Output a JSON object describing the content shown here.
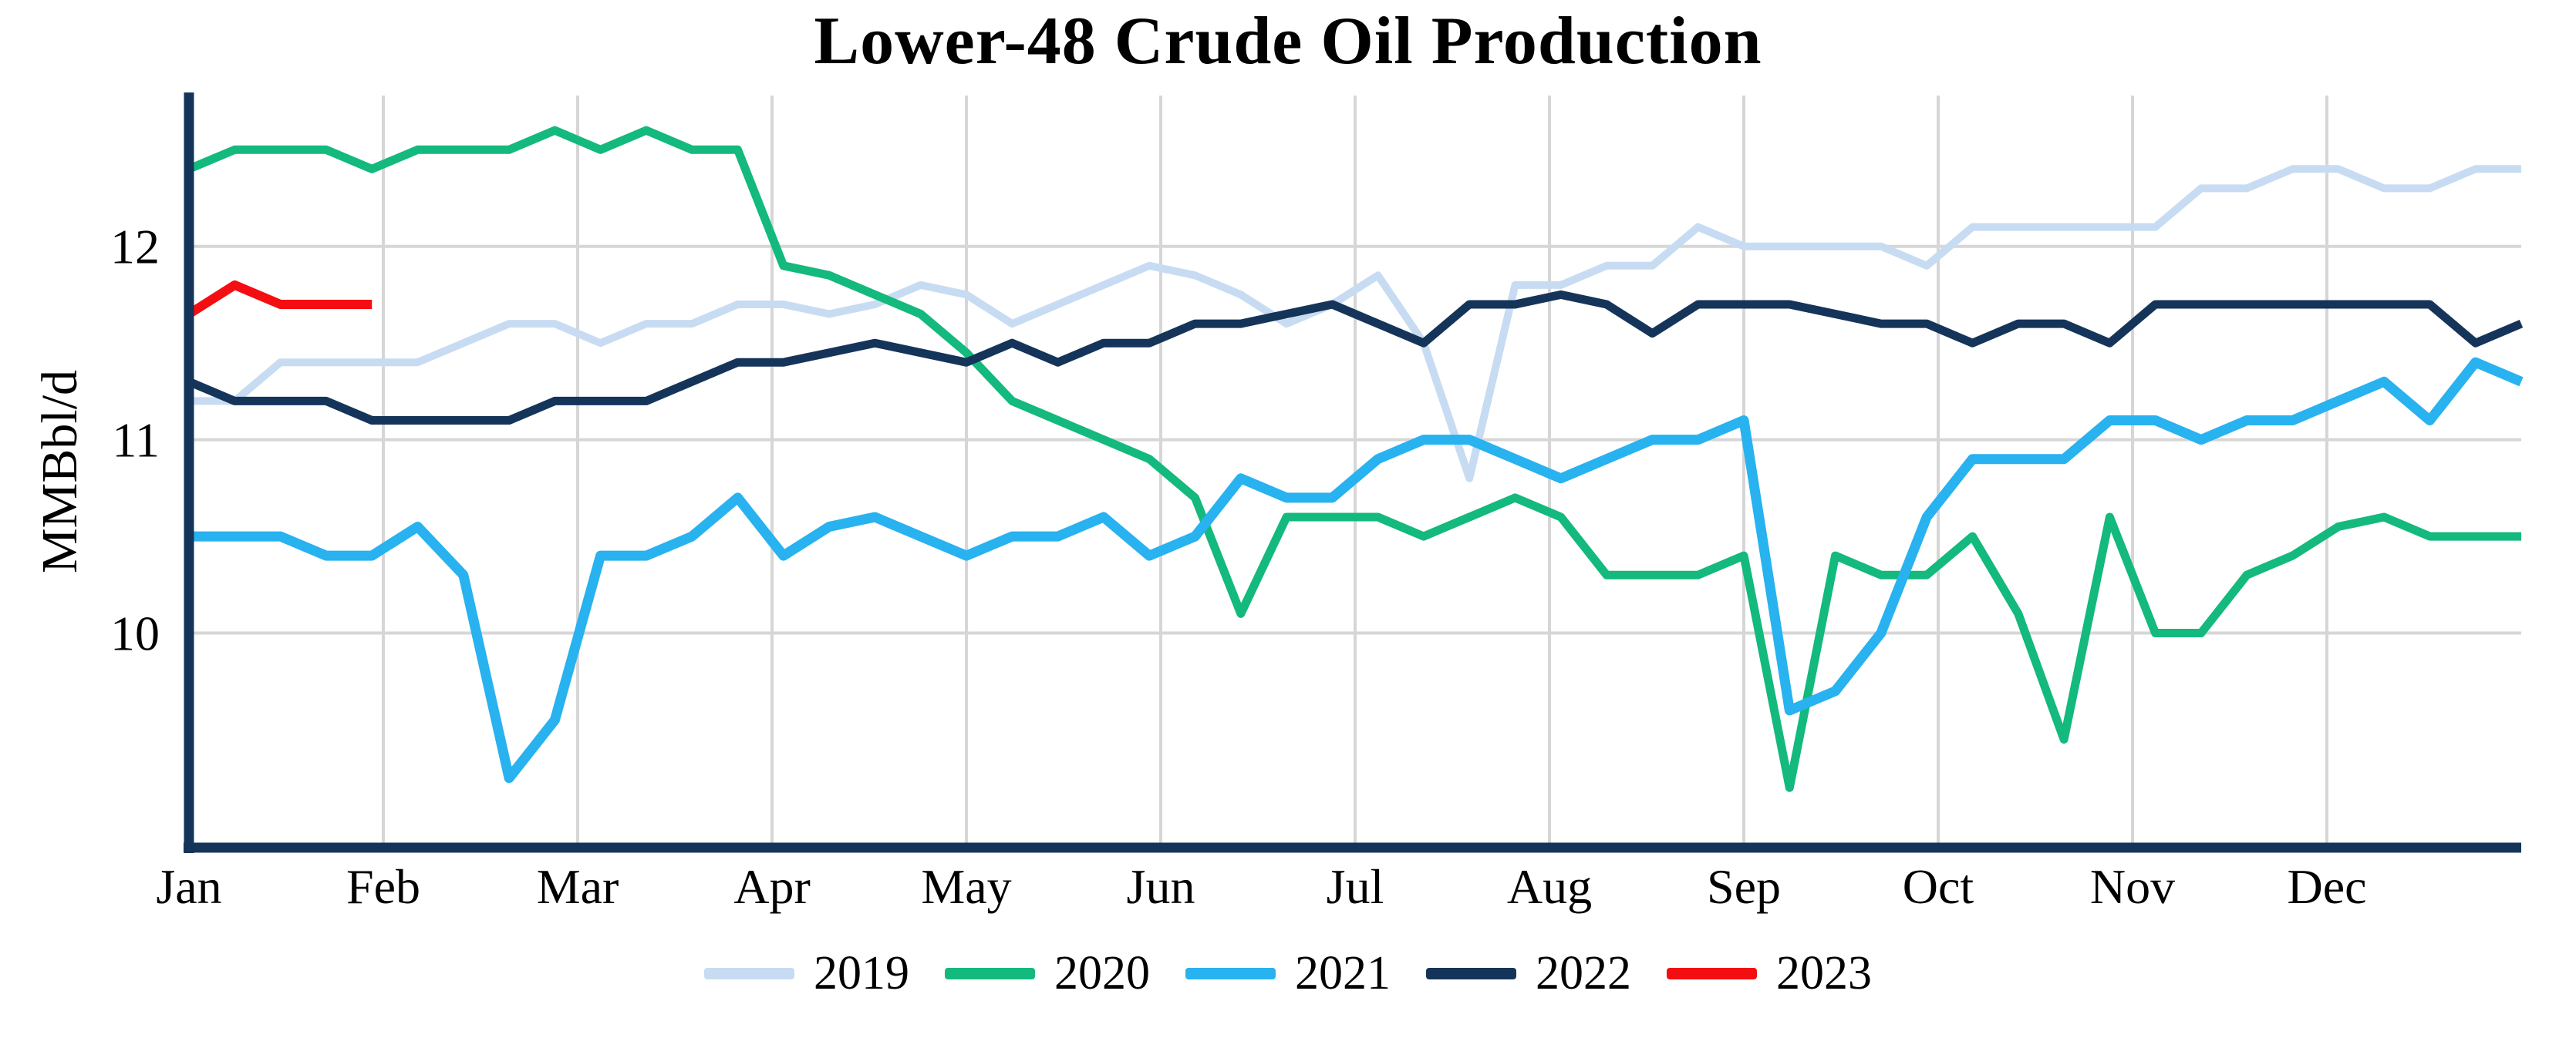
{
  "chart_data": {
    "type": "line",
    "title": "Lower-48 Crude Oil Production",
    "ylabel": "MMBbl/d",
    "xlabel": "",
    "x_unit": "week",
    "x_tick_labels": [
      "Jan",
      "Feb",
      "Mar",
      "Apr",
      "May",
      "Jun",
      "Jul",
      "Aug",
      "Sep",
      "Oct",
      "Nov",
      "Dec"
    ],
    "y_ticks": [
      12,
      11,
      10
    ],
    "ylim": [
      8.89,
      12.78
    ],
    "grid": true,
    "grid_color": "#d6d6d6",
    "axis_color": "#15345a",
    "background": "#ffffff",
    "legend_position": "bottom",
    "series": [
      {
        "name": "2019",
        "color": "#c7dcf2",
        "stroke_width": 10,
        "values": [
          11.2,
          11.2,
          11.4,
          11.4,
          11.4,
          11.4,
          11.5,
          11.6,
          11.6,
          11.5,
          11.6,
          11.6,
          11.7,
          11.7,
          11.65,
          11.7,
          11.8,
          11.75,
          11.6,
          11.7,
          11.8,
          11.9,
          11.85,
          11.75,
          11.6,
          11.7,
          11.85,
          11.5,
          10.8,
          11.8,
          11.8,
          11.9,
          11.9,
          12.1,
          12.0,
          12.0,
          12.0,
          12.0,
          11.9,
          12.1,
          12.1,
          12.1,
          12.1,
          12.1,
          12.3,
          12.3,
          12.4,
          12.4,
          12.3,
          12.3,
          12.4,
          12.4
        ]
      },
      {
        "name": "2020",
        "color": "#13b97d",
        "stroke_width": 11,
        "values": [
          12.4,
          12.5,
          12.5,
          12.5,
          12.4,
          12.5,
          12.5,
          12.5,
          12.6,
          12.5,
          12.6,
          12.5,
          12.5,
          11.9,
          11.85,
          11.75,
          11.65,
          11.45,
          11.2,
          11.1,
          11.0,
          10.9,
          10.7,
          10.1,
          10.6,
          10.6,
          10.6,
          10.5,
          10.6,
          10.7,
          10.6,
          10.3,
          10.3,
          10.3,
          10.4,
          9.2,
          10.4,
          10.3,
          10.3,
          10.5,
          10.1,
          9.45,
          10.6,
          10.0,
          10.0,
          10.3,
          10.4,
          10.55,
          10.6,
          10.5,
          10.5,
          10.5
        ]
      },
      {
        "name": "2021",
        "color": "#28b2ef",
        "stroke_width": 13,
        "values": [
          10.5,
          10.5,
          10.5,
          10.4,
          10.4,
          10.55,
          10.3,
          9.25,
          9.55,
          10.4,
          10.4,
          10.5,
          10.7,
          10.4,
          10.55,
          10.6,
          10.5,
          10.4,
          10.5,
          10.5,
          10.6,
          10.4,
          10.5,
          10.8,
          10.7,
          10.7,
          10.9,
          11.0,
          11.0,
          10.9,
          10.8,
          10.9,
          11.0,
          11.0,
          11.1,
          9.6,
          9.7,
          10.0,
          10.6,
          10.9,
          10.9,
          10.9,
          11.1,
          11.1,
          11.0,
          11.1,
          11.1,
          11.2,
          11.3,
          11.1,
          11.4,
          11.3
        ]
      },
      {
        "name": "2022",
        "color": "#15345a",
        "stroke_width": 11,
        "values": [
          11.3,
          11.2,
          11.2,
          11.2,
          11.1,
          11.1,
          11.1,
          11.1,
          11.2,
          11.2,
          11.2,
          11.3,
          11.4,
          11.4,
          11.45,
          11.5,
          11.45,
          11.4,
          11.5,
          11.4,
          11.5,
          11.5,
          11.6,
          11.6,
          11.65,
          11.7,
          11.6,
          11.5,
          11.7,
          11.7,
          11.75,
          11.7,
          11.55,
          11.7,
          11.7,
          11.7,
          11.65,
          11.6,
          11.6,
          11.5,
          11.6,
          11.6,
          11.5,
          11.7,
          11.7,
          11.7,
          11.7,
          11.7,
          11.7,
          11.7,
          11.5,
          11.6
        ]
      },
      {
        "name": "2023",
        "color": "#f40d11",
        "stroke_width": 12,
        "values": [
          11.65,
          11.8,
          11.7,
          11.7,
          11.7
        ]
      }
    ]
  }
}
